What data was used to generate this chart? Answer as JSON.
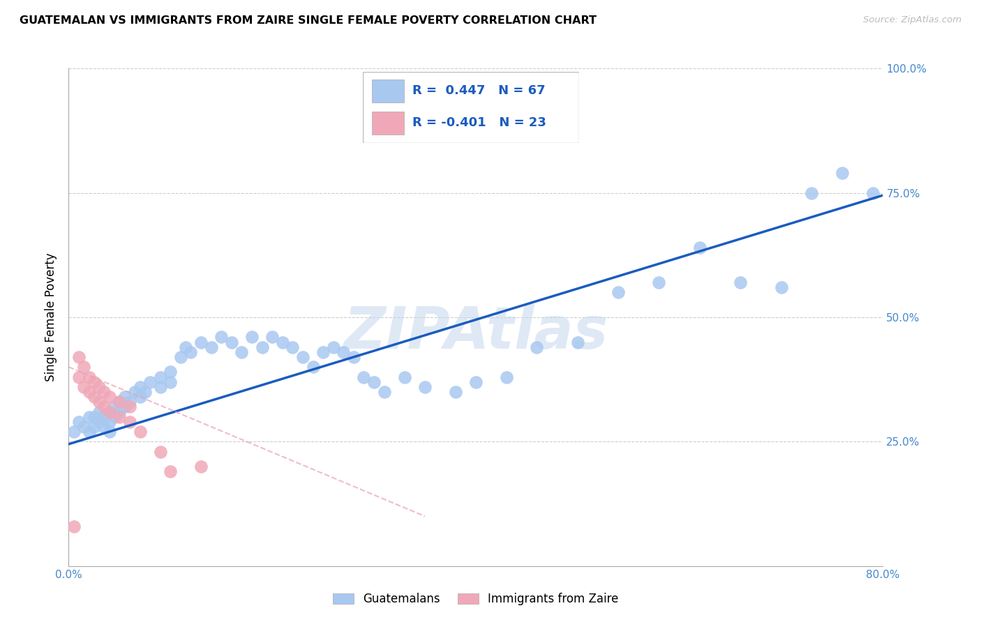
{
  "title": "GUATEMALAN VS IMMIGRANTS FROM ZAIRE SINGLE FEMALE POVERTY CORRELATION CHART",
  "source": "Source: ZipAtlas.com",
  "ylabel": "Single Female Poverty",
  "x_ticks": [
    0.0,
    0.1,
    0.2,
    0.3,
    0.4,
    0.5,
    0.6,
    0.7,
    0.8
  ],
  "y_ticks": [
    0.0,
    0.25,
    0.5,
    0.75,
    1.0
  ],
  "xlim": [
    0.0,
    0.8
  ],
  "ylim": [
    0.0,
    1.0
  ],
  "blue_R": 0.447,
  "blue_N": 67,
  "pink_R": -0.401,
  "pink_N": 23,
  "blue_color": "#a8c8f0",
  "blue_line_color": "#1a5cbf",
  "pink_color": "#f0a8b8",
  "pink_line_color": "#e8a0b4",
  "watermark": "ZIPAtlas",
  "blue_x": [
    0.005,
    0.01,
    0.015,
    0.02,
    0.02,
    0.025,
    0.025,
    0.03,
    0.03,
    0.035,
    0.035,
    0.04,
    0.04,
    0.04,
    0.045,
    0.045,
    0.05,
    0.05,
    0.055,
    0.055,
    0.06,
    0.065,
    0.07,
    0.07,
    0.075,
    0.08,
    0.09,
    0.09,
    0.1,
    0.1,
    0.11,
    0.115,
    0.12,
    0.13,
    0.14,
    0.15,
    0.16,
    0.17,
    0.18,
    0.19,
    0.2,
    0.21,
    0.22,
    0.23,
    0.24,
    0.25,
    0.26,
    0.27,
    0.28,
    0.29,
    0.3,
    0.31,
    0.33,
    0.35,
    0.38,
    0.4,
    0.43,
    0.46,
    0.5,
    0.54,
    0.58,
    0.62,
    0.66,
    0.7,
    0.73,
    0.76,
    0.79
  ],
  "blue_y": [
    0.27,
    0.29,
    0.28,
    0.3,
    0.27,
    0.3,
    0.28,
    0.29,
    0.31,
    0.3,
    0.28,
    0.29,
    0.31,
    0.27,
    0.3,
    0.32,
    0.31,
    0.33,
    0.32,
    0.34,
    0.33,
    0.35,
    0.34,
    0.36,
    0.35,
    0.37,
    0.36,
    0.38,
    0.37,
    0.39,
    0.42,
    0.44,
    0.43,
    0.45,
    0.44,
    0.46,
    0.45,
    0.43,
    0.46,
    0.44,
    0.46,
    0.45,
    0.44,
    0.42,
    0.4,
    0.43,
    0.44,
    0.43,
    0.42,
    0.38,
    0.37,
    0.35,
    0.38,
    0.36,
    0.35,
    0.37,
    0.38,
    0.44,
    0.45,
    0.55,
    0.57,
    0.64,
    0.57,
    0.56,
    0.75,
    0.79,
    0.75
  ],
  "pink_x": [
    0.005,
    0.01,
    0.01,
    0.015,
    0.015,
    0.02,
    0.02,
    0.025,
    0.025,
    0.03,
    0.03,
    0.035,
    0.035,
    0.04,
    0.04,
    0.05,
    0.05,
    0.06,
    0.06,
    0.07,
    0.09,
    0.1,
    0.13
  ],
  "pink_y": [
    0.08,
    0.42,
    0.38,
    0.4,
    0.36,
    0.38,
    0.35,
    0.37,
    0.34,
    0.36,
    0.33,
    0.35,
    0.32,
    0.34,
    0.31,
    0.3,
    0.33,
    0.29,
    0.32,
    0.27,
    0.23,
    0.19,
    0.2
  ],
  "blue_line_x": [
    0.0,
    0.8
  ],
  "blue_line_y": [
    0.245,
    0.745
  ],
  "pink_line_x": [
    0.0,
    0.35
  ],
  "pink_line_y": [
    0.4,
    0.1
  ]
}
